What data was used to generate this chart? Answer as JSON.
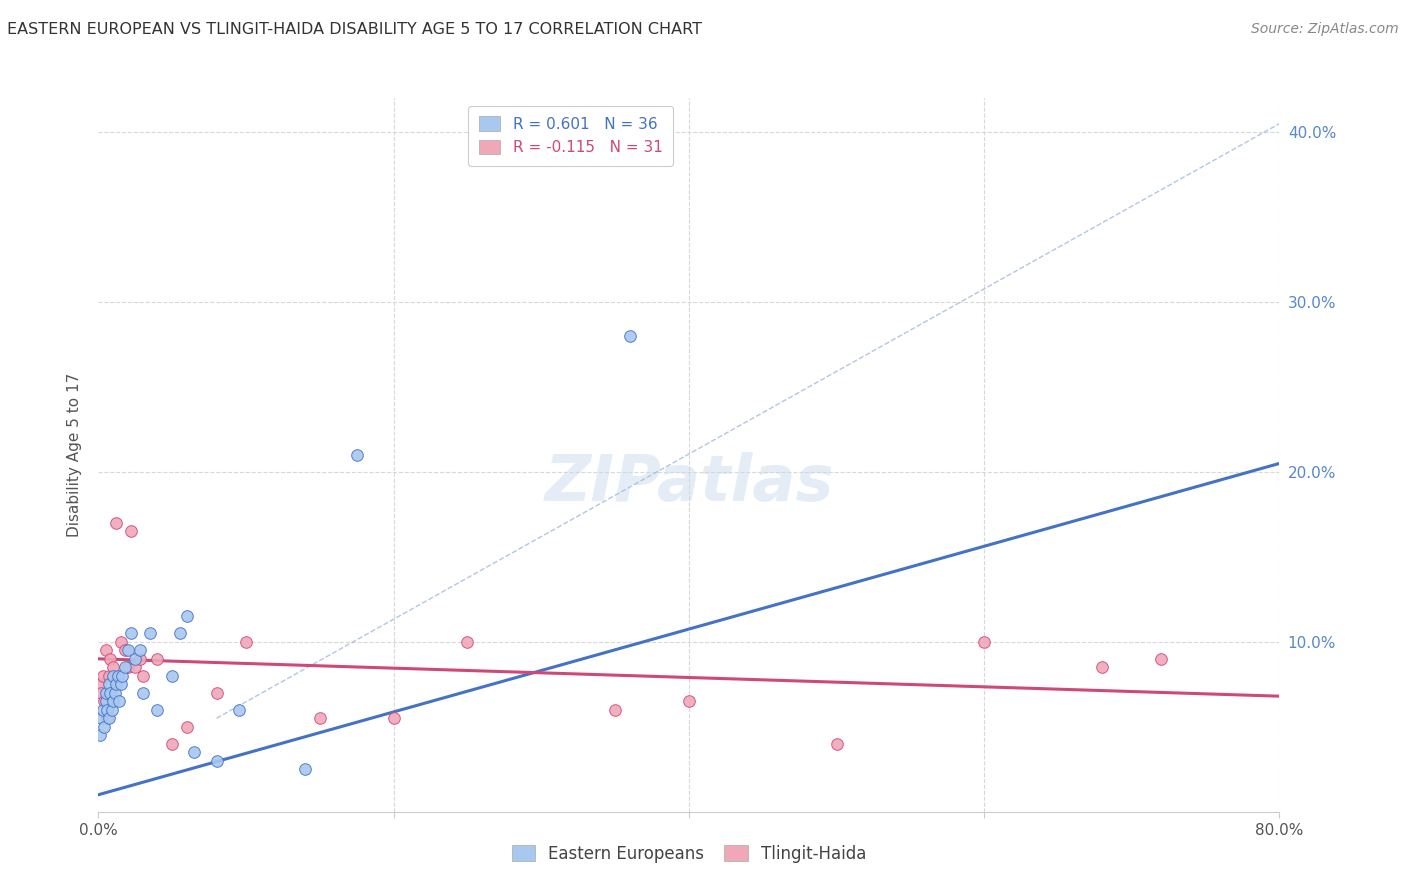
{
  "title": "EASTERN EUROPEAN VS TLINGIT-HAIDA DISABILITY AGE 5 TO 17 CORRELATION CHART",
  "source": "Source: ZipAtlas.com",
  "ylabel": "Disability Age 5 to 17",
  "legend_label1": "Eastern Europeans",
  "legend_label2": "Tlingit-Haida",
  "r1": 0.601,
  "n1": 36,
  "r2": -0.115,
  "n2": 31,
  "xlim": [
    0.0,
    0.8
  ],
  "ylim": [
    0.0,
    0.42
  ],
  "color_ee": "#a8c8f0",
  "color_th": "#f0a8b8",
  "line_color_ee": "#4472c4",
  "line_color_th": "#d04878",
  "watermark": "ZIPatlas",
  "background_color": "#ffffff",
  "grid_color": "#d8d8d8",
  "ee_points_x": [
    0.001,
    0.002,
    0.003,
    0.004,
    0.005,
    0.005,
    0.006,
    0.007,
    0.007,
    0.008,
    0.009,
    0.01,
    0.01,
    0.011,
    0.012,
    0.013,
    0.014,
    0.015,
    0.016,
    0.018,
    0.02,
    0.022,
    0.025,
    0.028,
    0.03,
    0.035,
    0.04,
    0.05,
    0.055,
    0.06,
    0.065,
    0.08,
    0.095,
    0.14,
    0.175,
    0.36
  ],
  "ee_points_y": [
    0.045,
    0.055,
    0.06,
    0.05,
    0.065,
    0.07,
    0.06,
    0.055,
    0.075,
    0.07,
    0.06,
    0.08,
    0.065,
    0.07,
    0.075,
    0.08,
    0.065,
    0.075,
    0.08,
    0.085,
    0.095,
    0.105,
    0.09,
    0.095,
    0.07,
    0.105,
    0.06,
    0.08,
    0.105,
    0.115,
    0.035,
    0.03,
    0.06,
    0.025,
    0.21,
    0.28
  ],
  "th_points_x": [
    0.001,
    0.002,
    0.003,
    0.004,
    0.005,
    0.006,
    0.007,
    0.008,
    0.01,
    0.012,
    0.015,
    0.018,
    0.02,
    0.022,
    0.025,
    0.028,
    0.03,
    0.04,
    0.05,
    0.06,
    0.08,
    0.1,
    0.15,
    0.2,
    0.25,
    0.35,
    0.4,
    0.5,
    0.6,
    0.68,
    0.72
  ],
  "th_points_y": [
    0.075,
    0.07,
    0.08,
    0.065,
    0.095,
    0.055,
    0.08,
    0.09,
    0.085,
    0.17,
    0.1,
    0.095,
    0.085,
    0.165,
    0.085,
    0.09,
    0.08,
    0.09,
    0.04,
    0.05,
    0.07,
    0.1,
    0.055,
    0.055,
    0.1,
    0.06,
    0.065,
    0.04,
    0.1,
    0.085,
    0.09
  ],
  "ee_line_x": [
    0.0,
    0.8
  ],
  "ee_line_y": [
    0.01,
    0.205
  ],
  "th_line_x": [
    0.0,
    0.8
  ],
  "th_line_y": [
    0.09,
    0.068
  ],
  "diag_line_x": [
    0.08,
    0.8
  ],
  "diag_line_y": [
    0.055,
    0.405
  ]
}
